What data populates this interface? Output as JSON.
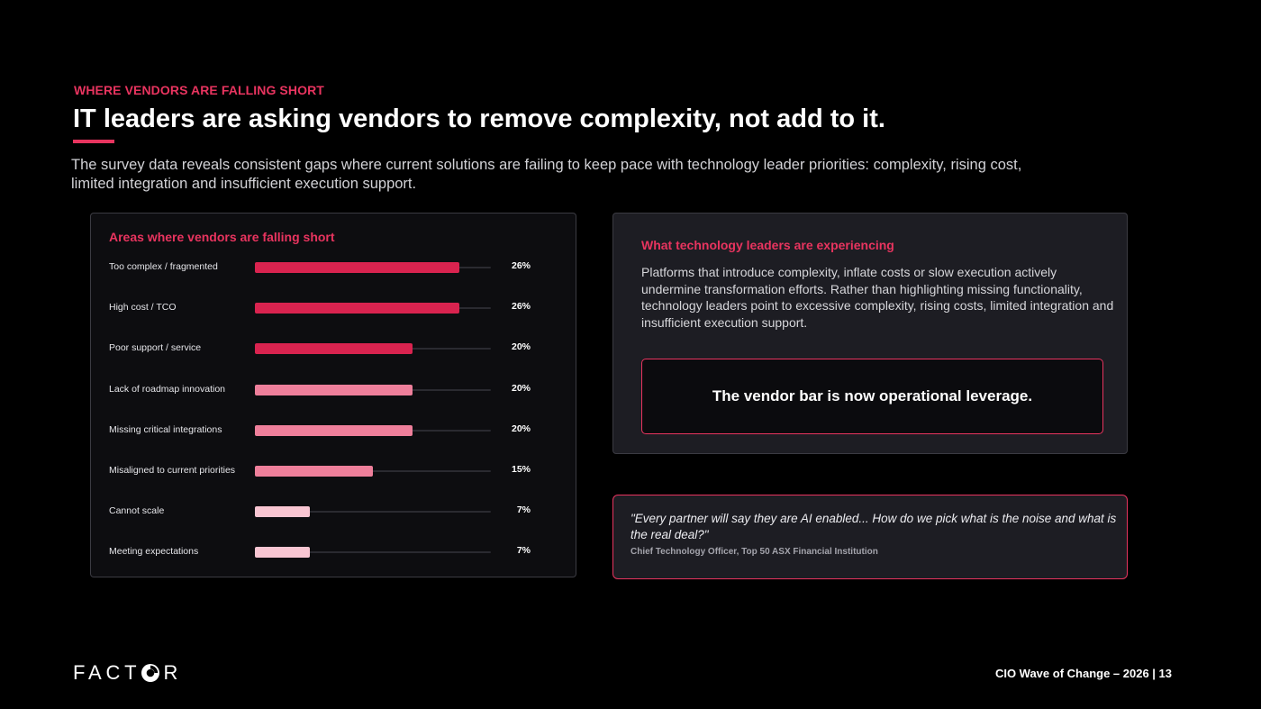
{
  "header": {
    "eyebrow": "WHERE VENDORS ARE FALLING SHORT",
    "title": "IT leaders are asking vendors to remove complexity, not add to it.",
    "intro": "The survey data reveals consistent gaps where current solutions are failing to keep pace with technology leader priorities: complexity, rising cost, limited integration and insufficient execution support."
  },
  "chart_data": {
    "type": "bar",
    "orientation": "horizontal",
    "title": "Areas where vendors are falling short",
    "xlabel": "",
    "ylabel": "",
    "categories": [
      "Too complex / fragmented",
      "High cost / TCO",
      "Poor support / service",
      "Lack of roadmap innovation",
      "Missing critical integrations",
      "Misaligned to current priorities",
      "Cannot scale",
      "Meeting expectations"
    ],
    "values": [
      26,
      26,
      20,
      20,
      20,
      15,
      7,
      7
    ],
    "value_labels": [
      "26%",
      "26%",
      "20%",
      "20%",
      "20%",
      "15%",
      "7%",
      "7%"
    ],
    "xlim": [
      0,
      30
    ],
    "grid": false,
    "bar_colors": [
      "#d9234f",
      "#d9234f",
      "#d9234f",
      "#ee7f9b",
      "#ee7f9b",
      "#ee7f9b",
      "#f8c5d2",
      "#f8c5d2"
    ]
  },
  "info": {
    "title": "What technology leaders are experiencing",
    "body": "Platforms that introduce complexity, inflate costs or slow execution actively undermine transformation efforts. Rather than highlighting missing functionality, technology leaders point to excessive complexity, rising costs, limited integration and insufficient execution support.",
    "callout": "The vendor bar is now operational leverage."
  },
  "quote": {
    "text": "\"Every partner will say they are AI enabled... How do we pick what is the noise and what is the real deal?\"",
    "attribution": "Chief Technology Officer, Top 50 ASX Financial Institution"
  },
  "footer": {
    "logo_pre": "FACT",
    "logo_post": "R",
    "logo_mark": "factor-o-icon",
    "page_label": "CIO Wave of Change – 2026 | 13"
  },
  "colors": {
    "accent": "#e8345f",
    "background": "#000000",
    "card": "#1d1d23"
  }
}
